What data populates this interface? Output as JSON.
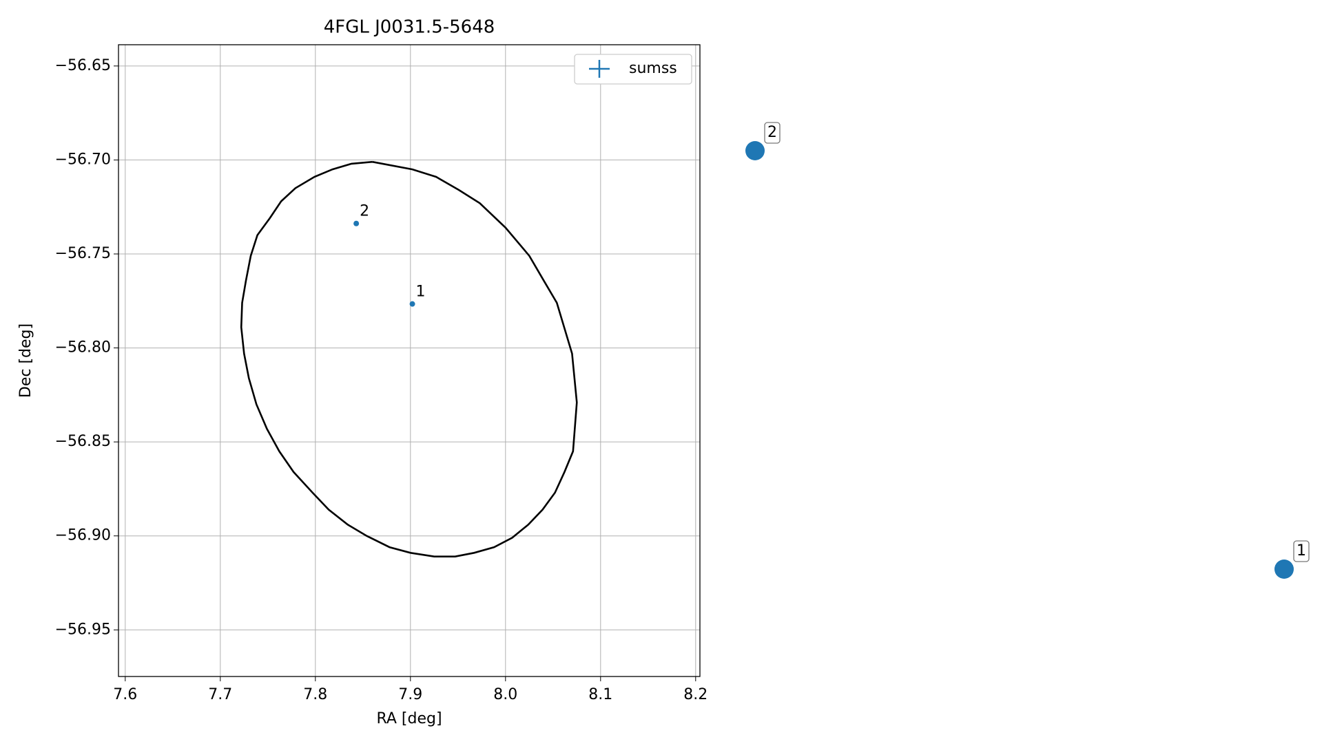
{
  "chart_data": {
    "type": "scatter",
    "title": "4FGL J0031.5-5648",
    "x_label": "RA [deg]",
    "y_label": "Dec [deg]",
    "xlim": [
      7.5929,
      8.2045
    ],
    "ylim": [
      -56.9748,
      -56.6387
    ],
    "xticks": [
      7.6,
      7.7,
      7.8,
      7.9,
      8.0,
      8.1,
      8.2
    ],
    "yticks": [
      {
        "value": -56.65,
        "label": "−56.65"
      },
      {
        "value": -56.7,
        "label": "−56.70"
      },
      {
        "value": -56.75,
        "label": "−56.75"
      },
      {
        "value": -56.8,
        "label": "−56.80"
      },
      {
        "value": -56.85,
        "label": "−56.85"
      },
      {
        "value": -56.9,
        "label": "−56.90"
      },
      {
        "value": -56.95,
        "label": "−56.95"
      }
    ],
    "xtick_labels": [
      "7.6",
      "7.7",
      "7.8",
      "7.9",
      "8.0",
      "8.1",
      "8.2"
    ],
    "grid": true,
    "legend": "upper right",
    "series": [
      {
        "name": "sumss",
        "color": "#1f77b4",
        "x": [
          7.902,
          7.843
        ],
        "y": [
          -56.7766,
          -56.7338
        ],
        "labels": [
          "1",
          "2"
        ]
      }
    ],
    "ellipse": {
      "color": "#000000",
      "x": [
        7.86,
        7.902,
        7.927,
        7.951,
        7.973,
        8.0,
        8.025,
        8.04,
        8.054,
        8.07,
        8.075,
        8.071,
        8.062,
        8.052,
        8.039,
        8.024,
        8.007,
        7.988,
        7.967,
        7.947,
        7.925,
        7.9,
        7.878,
        7.854,
        7.834,
        7.814,
        7.797,
        7.777,
        7.762,
        7.749,
        7.738,
        7.73,
        7.725,
        7.722,
        7.723,
        7.727,
        7.732,
        7.739,
        7.752,
        7.764,
        7.779,
        7.799,
        7.818,
        7.838,
        7.86
      ],
      "y": [
        -56.701,
        -56.705,
        -56.709,
        -56.716,
        -56.723,
        -56.736,
        -56.751,
        -56.764,
        -56.776,
        -56.803,
        -56.829,
        -56.855,
        -56.866,
        -56.877,
        -56.886,
        -56.894,
        -56.901,
        -56.906,
        -56.909,
        -56.911,
        -56.911,
        -56.909,
        -56.906,
        -56.9,
        -56.894,
        -56.886,
        -56.877,
        -56.866,
        -56.855,
        -56.843,
        -56.83,
        -56.816,
        -56.803,
        -56.789,
        -56.776,
        -56.764,
        -56.751,
        -56.74,
        -56.731,
        -56.722,
        -56.715,
        -56.709,
        -56.705,
        -56.702,
        -56.701
      ]
    },
    "callouts": [
      {
        "label": "2"
      },
      {
        "label": "1"
      }
    ]
  }
}
